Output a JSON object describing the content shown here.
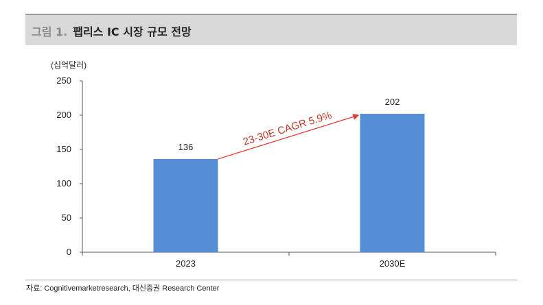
{
  "figure": {
    "prefix": "그림 1.",
    "title": "팹리스 IC 시장 규모 전망"
  },
  "source": "자료: Cognitivemarketresearch, 대신증권 Research Center",
  "colors": {
    "bar": "#558ed5",
    "arrow": "#e53935",
    "annotation": "#c0392b",
    "axis": "#555555"
  },
  "chart_data": {
    "type": "bar",
    "categories": [
      "2023",
      "2030E"
    ],
    "values": [
      136,
      202
    ],
    "data_labels": [
      "136",
      "202"
    ],
    "unit_label": "(십억달러)",
    "ylim": [
      0,
      250
    ],
    "yticks": [
      0,
      50,
      100,
      150,
      200,
      250
    ],
    "grid": false,
    "annotation": "23-30E CAGR 5.9%"
  }
}
